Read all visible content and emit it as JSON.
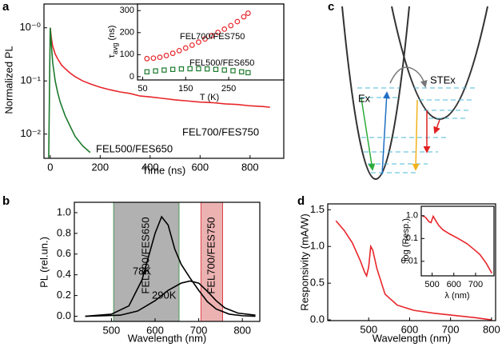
{
  "chart_data": [
    {
      "type": "line",
      "panel": "a",
      "xlabel": "Time (ns)",
      "ylabel": "Normalized PL",
      "xlim": [
        -25,
        935
      ],
      "ylim": [
        0.0035,
        2.8
      ],
      "ylog": true,
      "xticks": [
        0,
        200,
        400,
        600,
        800
      ],
      "yticks": [
        {
          "value": 1,
          "label": "10⁻⁰"
        },
        {
          "value": 0.1,
          "label": "10⁻¹"
        },
        {
          "value": 0.01,
          "label": "10⁻²"
        }
      ],
      "series": [
        {
          "name": "FEL700/FES750",
          "color": "#e8262b",
          "x": [
            0,
            5,
            10,
            20,
            30,
            45,
            60,
            80,
            100,
            130,
            160,
            200,
            240,
            280,
            320,
            360,
            400,
            450,
            500,
            550,
            600,
            650,
            700,
            750,
            800,
            850,
            880
          ],
          "values": [
            1.0,
            0.62,
            0.45,
            0.32,
            0.26,
            0.2,
            0.17,
            0.14,
            0.12,
            0.1,
            0.088,
            0.076,
            0.068,
            0.062,
            0.058,
            0.052,
            0.05,
            0.047,
            0.044,
            0.042,
            0.04,
            0.039,
            0.037,
            0.036,
            0.034,
            0.033,
            0.032
          ]
        },
        {
          "name": "FEL500/FES650",
          "color": "#1c7a2c",
          "x": [
            -6,
            0,
            5,
            10,
            20,
            30,
            40,
            60,
            80,
            100,
            130,
            160
          ],
          "values": [
            0.0036,
            1.0,
            0.45,
            0.22,
            0.1,
            0.06,
            0.04,
            0.022,
            0.014,
            0.009,
            0.006,
            0.0045
          ]
        }
      ],
      "inset": {
        "type": "line",
        "xlabel": "T (K)",
        "ylabel": [
          "τ",
          "avg",
          " (ns)"
        ],
        "xlim": [
          38,
          378
        ],
        "ylim": [
          -15,
          330
        ],
        "xticks": [
          50,
          150,
          250
        ],
        "yticks": [
          0,
          100,
          200,
          300
        ],
        "series": [
          {
            "name": "FEL700/FES750",
            "color": "#e8262b",
            "marker": "circle",
            "x": [
              60,
              75,
              90,
              105,
              120,
              135,
              150,
              165,
              180,
              195,
              210,
              225,
              240,
              255,
              270,
              285,
              295
            ],
            "values": [
              82,
              84,
              88,
              96,
              106,
              118,
              130,
              143,
              157,
              171,
              186,
              201,
              216,
              232,
              250,
              272,
              288
            ]
          },
          {
            "name": "FEL500/FES650",
            "color": "#1c7a2c",
            "marker": "square",
            "x": [
              60,
              80,
              100,
              120,
              140,
              160,
              180,
              200,
              220,
              240,
              260,
              280,
              295
            ],
            "values": [
              22,
              26,
              30,
              33,
              35,
              36,
              36,
              35,
              33,
              30,
              27,
              22,
              18
            ]
          }
        ]
      }
    },
    {
      "type": "line",
      "panel": "b",
      "xlabel": "Wavelength (nm)",
      "ylabel": "PL (rel.un.)",
      "xlim": [
        415,
        840
      ],
      "ylim": [
        -0.05,
        1.1
      ],
      "xticks": [
        500,
        600,
        700,
        800
      ],
      "yticks": [
        {
          "value": 0,
          "label": "0.0"
        },
        0.2,
        0.4,
        0.6,
        0.8,
        {
          "value": 1,
          "label": "1.0"
        }
      ],
      "bands": [
        {
          "range": [
            505,
            655
          ],
          "color": "#a3a3a3",
          "label": "FEL500/FES650",
          "label_color": "#2e8b3a"
        },
        {
          "range": [
            705,
            755
          ],
          "color": "#e9a4a4",
          "label": "FEL700/FES750",
          "label_color": "#d9272e"
        }
      ],
      "series": [
        {
          "name": "78K",
          "color": "#000000",
          "x": [
            440,
            500,
            540,
            570,
            590,
            600,
            615,
            630,
            645,
            660,
            680,
            700,
            720,
            740,
            770,
            800,
            830
          ],
          "values": [
            0,
            0.02,
            0.1,
            0.35,
            0.65,
            0.8,
            0.96,
            0.88,
            0.65,
            0.5,
            0.37,
            0.25,
            0.14,
            0.07,
            0.02,
            0.005,
            0
          ]
        },
        {
          "name": "290K",
          "color": "#000000",
          "x": [
            440,
            520,
            560,
            600,
            630,
            660,
            680,
            700,
            720,
            740,
            760,
            790,
            830
          ],
          "values": [
            0,
            0.01,
            0.05,
            0.15,
            0.25,
            0.32,
            0.34,
            0.32,
            0.24,
            0.15,
            0.08,
            0.03,
            0.01
          ]
        }
      ]
    },
    {
      "type": "line",
      "panel": "d",
      "xlabel": "Wavelength (nm)",
      "ylabel": "Responsivity (mA/W)",
      "xlim": [
        400,
        810
      ],
      "ylim": [
        -0.01,
        1.58
      ],
      "xticks": [
        500,
        600,
        700,
        800
      ],
      "yticks": [
        {
          "value": 0,
          "label": "0.0"
        },
        0.5,
        {
          "value": 1,
          "label": "1.0"
        },
        1.5
      ],
      "series": [
        {
          "color": "#e8262b",
          "x": [
            420,
            440,
            460,
            480,
            490,
            495,
            500,
            505,
            510,
            520,
            540,
            570,
            610,
            660,
            710,
            760,
            800
          ],
          "values": [
            1.35,
            1.22,
            1.05,
            0.8,
            0.65,
            0.6,
            0.72,
            1.0,
            0.95,
            0.7,
            0.35,
            0.2,
            0.13,
            0.09,
            0.06,
            0.03,
            0.0
          ]
        }
      ],
      "inset": {
        "type": "line",
        "xlabel": "λ (nm)",
        "ylabel": "log (Resp.)",
        "xlim": [
          450,
          785
        ],
        "ylim": [
          0.0023,
          2.6
        ],
        "ylog": true,
        "xticks": [
          500,
          600,
          700
        ],
        "yticks": [
          {
            "value": 1,
            "label": "1.0"
          },
          0.1,
          0.01
        ],
        "series": [
          {
            "color": "#e8262b",
            "x": [
              455,
              470,
              485,
              495,
              500,
              505,
              515,
              530,
              550,
              580,
              620,
              660,
              690,
              720,
              750,
              775
            ],
            "values": [
              1.0,
              0.85,
              0.55,
              0.5,
              0.7,
              0.95,
              0.65,
              0.38,
              0.24,
              0.16,
              0.1,
              0.06,
              0.035,
              0.02,
              0.008,
              0.003
            ]
          }
        ]
      }
    }
  ],
  "diagram": {
    "panel": "c",
    "labels": [
      "Ex",
      "STEx"
    ]
  }
}
